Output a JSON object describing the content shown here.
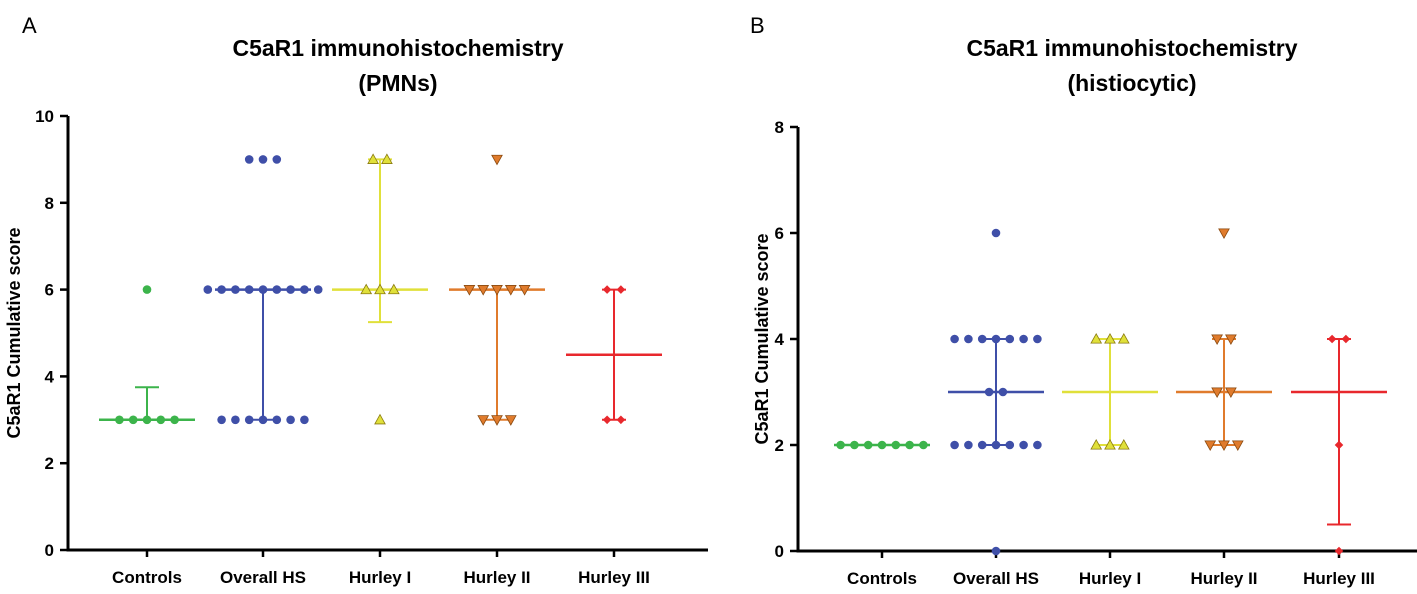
{
  "chart_data": [
    {
      "type": "scatter",
      "panel_label": "A",
      "title_lines": [
        "C5aR1 immunohistochemistry",
        "(PMNs)"
      ],
      "xlabel": "",
      "ylabel": "C5aR1 Cumulative score",
      "ylim": [
        0,
        10
      ],
      "yticks": [
        0,
        2,
        4,
        6,
        8,
        10
      ],
      "grid": false,
      "categories": [
        "Controls",
        "Overall HS",
        "Hurley I",
        "Hurley II",
        "Hurley III"
      ],
      "series": [
        {
          "name": "Controls",
          "color": "#3cb44b",
          "marker": "circle",
          "points": [
            6,
            3,
            3,
            3,
            3,
            3
          ],
          "median": 3,
          "q1": 3,
          "q3": 3.75
        },
        {
          "name": "Overall HS",
          "color": "#3f4fa8",
          "marker": "circle",
          "points": [
            9,
            9,
            9,
            6,
            6,
            6,
            6,
            6,
            6,
            6,
            6,
            6,
            3,
            3,
            3,
            3,
            3,
            3,
            3
          ],
          "median": 6,
          "q1": 3,
          "q3": 6
        },
        {
          "name": "Hurley I",
          "color": "#e0e03a",
          "marker": "triangle-up",
          "points": [
            9,
            9,
            6,
            6,
            6,
            3
          ],
          "median": 6,
          "q1": 5.25,
          "q3": 9
        },
        {
          "name": "Hurley II",
          "color": "#e07b2c",
          "marker": "triangle-down",
          "points": [
            9,
            6,
            6,
            6,
            6,
            6,
            3,
            3,
            3
          ],
          "median": 6,
          "q1": 3,
          "q3": 6
        },
        {
          "name": "Hurley III",
          "color": "#e8282d",
          "marker": "diamond",
          "points": [
            6,
            6,
            3,
            3
          ],
          "median": 4.5,
          "q1": 3,
          "q3": 6
        }
      ]
    },
    {
      "type": "scatter",
      "panel_label": "B",
      "title_lines": [
        "C5aR1 immunohistochemistry",
        "(histiocytic)"
      ],
      "xlabel": "",
      "ylabel": "C5aR1 Cumulative score",
      "ylim": [
        0,
        8
      ],
      "yticks": [
        0,
        2,
        4,
        6,
        8
      ],
      "grid": false,
      "categories": [
        "Controls",
        "Overall HS",
        "Hurley I",
        "Hurley II",
        "Hurley III"
      ],
      "series": [
        {
          "name": "Controls",
          "color": "#3cb44b",
          "marker": "circle",
          "points": [
            2,
            2,
            2,
            2,
            2,
            2,
            2
          ],
          "median": 2,
          "q1": 2,
          "q3": 2
        },
        {
          "name": "Overall HS",
          "color": "#3f4fa8",
          "marker": "circle",
          "points": [
            6,
            4,
            4,
            4,
            4,
            4,
            4,
            4,
            3,
            3,
            2,
            2,
            2,
            2,
            2,
            2,
            2,
            0
          ],
          "median": 3,
          "q1": 2,
          "q3": 4
        },
        {
          "name": "Hurley I",
          "color": "#e0e03a",
          "marker": "triangle-up",
          "points": [
            4,
            4,
            4,
            2,
            2,
            2
          ],
          "median": 3,
          "q1": 2,
          "q3": 4
        },
        {
          "name": "Hurley II",
          "color": "#e07b2c",
          "marker": "triangle-down",
          "points": [
            6,
            4,
            4,
            3,
            3,
            2,
            2,
            2
          ],
          "median": 3,
          "q1": 2,
          "q3": 4
        },
        {
          "name": "Hurley III",
          "color": "#e8282d",
          "marker": "diamond",
          "points": [
            4,
            4,
            2,
            0
          ],
          "median": 3,
          "q1": 0.5,
          "q3": 4
        }
      ]
    }
  ]
}
